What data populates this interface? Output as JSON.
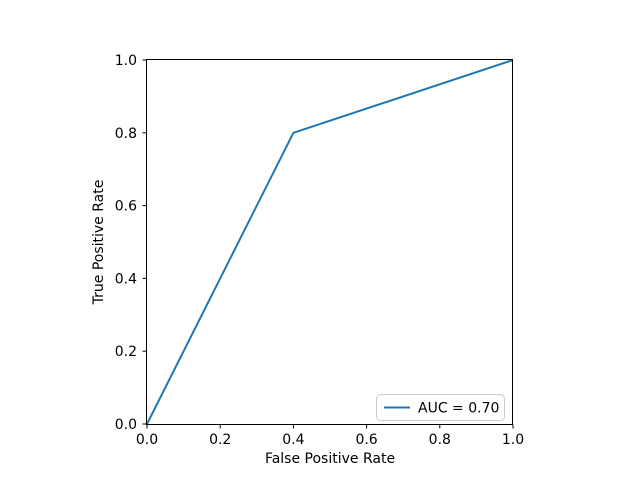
{
  "figure": {
    "background": "#ffffff",
    "spine_color": "#000000",
    "tick_color": "#000000"
  },
  "chart_data": {
    "type": "line",
    "title": "",
    "xlabel": "False Positive Rate",
    "ylabel": "True Positive Rate",
    "xlim": [
      0.0,
      1.0
    ],
    "ylim": [
      0.0,
      1.0
    ],
    "xticks": [
      0.0,
      0.2,
      0.4,
      0.6,
      0.8,
      1.0
    ],
    "xtick_labels": [
      "0.0",
      "0.2",
      "0.4",
      "0.6",
      "0.8",
      "1.0"
    ],
    "yticks": [
      0.0,
      0.2,
      0.4,
      0.6,
      0.8,
      1.0
    ],
    "ytick_labels": [
      "0.0",
      "0.2",
      "0.4",
      "0.6",
      "0.8",
      "1.0"
    ],
    "grid": false,
    "legend": {
      "position": "lower right",
      "entries": [
        "AUC = 0.70"
      ],
      "border_color": "#cccccc",
      "background": "#ffffff"
    },
    "series": [
      {
        "name": "AUC = 0.70",
        "color": "#1f77b4",
        "line_width": 2,
        "x": [
          0.0,
          0.4,
          1.0
        ],
        "y": [
          0.0,
          0.8,
          1.0
        ]
      }
    ]
  }
}
